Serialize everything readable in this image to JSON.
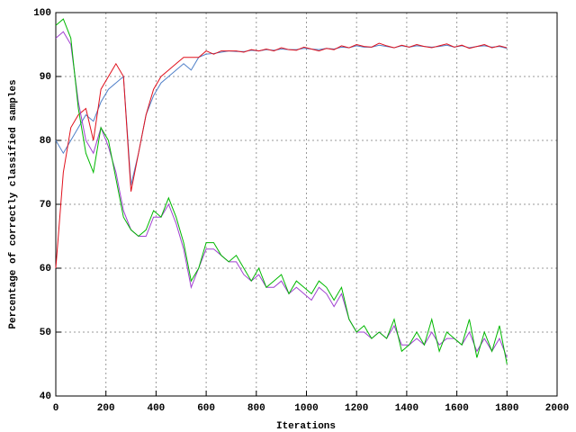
{
  "chart_data": {
    "type": "line",
    "xlabel": "Iterations",
    "ylabel": "Percentage of correctly classified samples",
    "xlim": [
      0,
      2000
    ],
    "ylim": [
      40,
      100
    ],
    "xticks": [
      0,
      200,
      400,
      600,
      800,
      1000,
      1200,
      1400,
      1600,
      1800,
      2000
    ],
    "yticks": [
      40,
      50,
      60,
      70,
      80,
      90,
      100
    ],
    "grid": true,
    "x": [
      0,
      30,
      60,
      90,
      120,
      150,
      180,
      210,
      240,
      270,
      300,
      330,
      360,
      390,
      420,
      450,
      480,
      510,
      540,
      570,
      600,
      630,
      660,
      690,
      720,
      750,
      780,
      810,
      840,
      870,
      900,
      930,
      960,
      990,
      1020,
      1050,
      1080,
      1110,
      1140,
      1170,
      1200,
      1230,
      1260,
      1290,
      1320,
      1350,
      1380,
      1410,
      1440,
      1470,
      1500,
      1530,
      1560,
      1590,
      1620,
      1650,
      1680,
      1710,
      1740,
      1770,
      1800
    ],
    "series": [
      {
        "color": "#5080c8",
        "values": [
          80,
          78,
          80,
          82,
          84,
          83,
          86,
          88,
          89,
          90,
          73,
          78,
          84,
          87,
          89,
          90,
          91,
          92,
          91,
          93,
          93.5,
          93.6,
          93.8,
          94,
          93.9,
          93.9,
          94.1,
          94,
          94.2,
          94.1,
          94.3,
          94.2,
          94.2,
          94.4,
          94.3,
          94.2,
          94.4,
          94.3,
          94.6,
          94.5,
          94.8,
          94.6,
          94.6,
          94.9,
          94.7,
          94.5,
          94.8,
          94.6,
          94.8,
          94.7,
          94.6,
          94.7,
          94.9,
          94.6,
          94.8,
          94.5,
          94.7,
          94.8,
          94.6,
          94.7,
          94.4
        ]
      },
      {
        "color": "#e0101c",
        "values": [
          60,
          75,
          82,
          84,
          85,
          80,
          88,
          90,
          92,
          90,
          72,
          78,
          84,
          88,
          90,
          91,
          92,
          93,
          93,
          93,
          94,
          93.5,
          94,
          94,
          94,
          93.8,
          94.2,
          94,
          94.3,
          94,
          94.5,
          94.2,
          94.1,
          94.6,
          94.3,
          94,
          94.4,
          94.2,
          94.8,
          94.5,
          95,
          94.7,
          94.6,
          95.2,
          94.8,
          94.5,
          94.9,
          94.6,
          95,
          94.7,
          94.5,
          94.8,
          95.1,
          94.6,
          94.9,
          94.4,
          94.7,
          95,
          94.5,
          94.8,
          94.5
        ]
      },
      {
        "color": "#a040d0",
        "values": [
          96,
          97,
          95,
          86,
          80,
          78,
          82,
          79,
          75,
          69,
          66,
          65,
          65,
          68,
          68,
          70,
          67,
          63,
          57,
          60,
          63,
          63,
          62,
          61,
          61,
          59,
          58,
          59,
          57,
          57,
          58,
          56,
          57,
          56,
          55,
          57,
          56,
          54,
          56,
          52,
          50,
          50,
          49,
          50,
          49,
          51,
          48,
          48,
          49,
          48,
          50,
          48,
          49,
          49,
          48,
          50,
          47,
          49,
          47,
          49,
          46
        ]
      },
      {
        "color": "#00b800",
        "values": [
          98,
          99,
          96,
          85,
          78,
          75,
          82,
          80,
          74,
          68,
          66,
          65,
          66,
          69,
          68,
          71,
          68,
          64,
          58,
          60,
          64,
          64,
          62,
          61,
          62,
          60,
          58,
          60,
          57,
          58,
          59,
          56,
          58,
          57,
          56,
          58,
          57,
          55,
          57,
          52,
          50,
          51,
          49,
          50,
          49,
          52,
          47,
          48,
          50,
          48,
          52,
          47,
          50,
          49,
          48,
          52,
          46,
          50,
          47,
          51,
          45
        ]
      }
    ]
  }
}
